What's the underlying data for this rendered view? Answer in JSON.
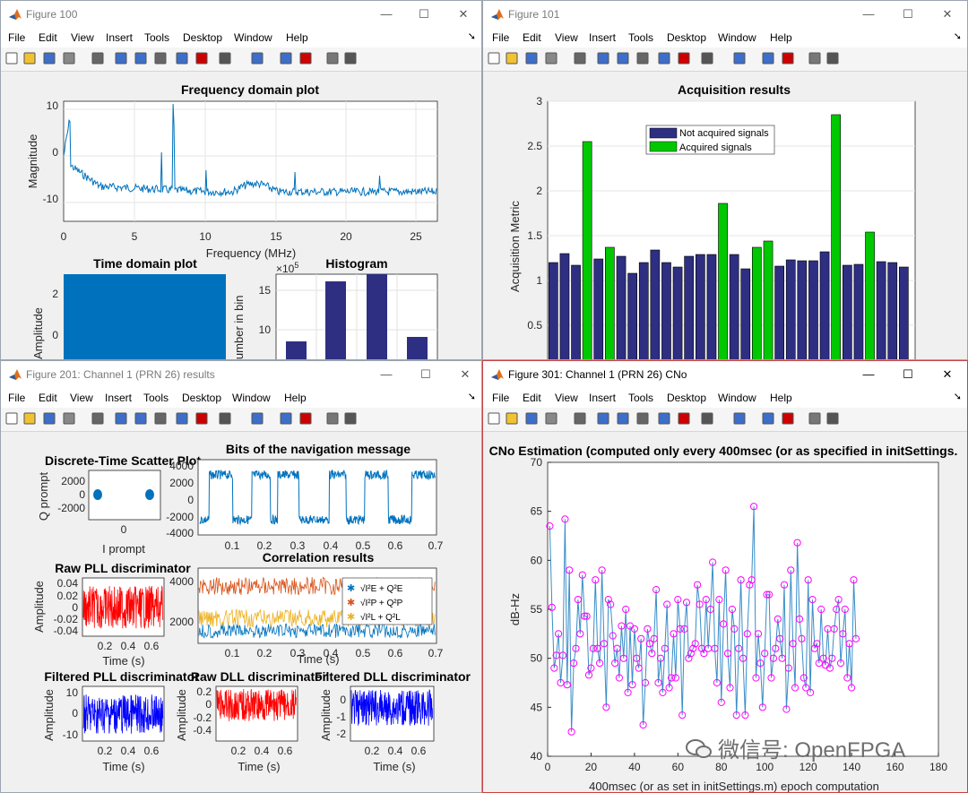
{
  "menus": [
    "File",
    "Edit",
    "View",
    "Insert",
    "Tools",
    "Desktop",
    "Window",
    "Help"
  ],
  "windows": {
    "fig100": {
      "title": "Figure 100",
      "freq": {
        "title": "Frequency domain plot",
        "xlabel": "Frequency (MHz)",
        "ylabel": "Magnitude",
        "xticks": [
          "0",
          "5",
          "10",
          "15",
          "20",
          "25"
        ],
        "yticks": [
          "10",
          "0",
          "-10"
        ]
      },
      "timedom": {
        "title": "Time domain plot",
        "ylabel": "Amplitude",
        "yticks": [
          "2",
          "0"
        ]
      },
      "hist": {
        "title": "Histogram",
        "ylabel": "Number in bin",
        "exponent": "×10",
        "exp_power": "5",
        "yticks": [
          "15",
          "10"
        ]
      }
    },
    "fig101": {
      "title": "Figure 101"
    },
    "fig201": {
      "title": "Figure 201: Channel 1 (PRN 26) results",
      "scatter": {
        "title": "Discrete-Time Scatter Plot",
        "xlabel": "I prompt",
        "ylabel": "Q prompt",
        "yticks": [
          "2000",
          "0",
          "-2000"
        ],
        "xticks": [
          "0"
        ]
      },
      "bits": {
        "title": "Bits of the navigation message",
        "xlabel": "",
        "yticks": [
          "4000",
          "2000",
          "0",
          "-2000",
          "-4000"
        ],
        "xticks": [
          "0.1",
          "0.2",
          "0.3",
          "0.4",
          "0.5",
          "0.6",
          "0.7"
        ]
      },
      "pll": {
        "title": "Raw PLL discriminator",
        "xlabel": "Time (s)",
        "ylabel": "Amplitude",
        "yticks": [
          "0.04",
          "0.02",
          "0",
          "-0.02",
          "-0.04"
        ],
        "xticks": [
          "0.2",
          "0.4",
          "0.6"
        ]
      },
      "corr": {
        "title": "Correlation results",
        "xlabel": "Time (s)",
        "yticks": [
          "4000",
          "2000"
        ],
        "xticks": [
          "0.1",
          "0.2",
          "0.3",
          "0.4",
          "0.5",
          "0.6",
          "0.7"
        ],
        "legend": [
          "√I²E + Q²E",
          "√I²P + Q²P",
          "√I²L + Q²L"
        ]
      },
      "fpll": {
        "title": "Filtered PLL discriminator",
        "xlabel": "Time (s)",
        "ylabel": "Amplitude",
        "yticks": [
          "10",
          "0",
          "-10"
        ],
        "xticks": [
          "0.2",
          "0.4",
          "0.6"
        ]
      },
      "dll": {
        "title": "Raw DLL discriminator",
        "xlabel": "Time (s)",
        "ylabel": "Amplitude",
        "yticks": [
          "0.2",
          "0",
          "-0.2",
          "-0.4"
        ],
        "xticks": [
          "0.2",
          "0.4",
          "0.6"
        ]
      },
      "fdll": {
        "title": "Filtered DLL discriminator",
        "xlabel": "Time (s)",
        "ylabel": "Amplitude",
        "yticks": [
          "0",
          "-1",
          "-2"
        ],
        "xticks": [
          "0.2",
          "0.4",
          "0.6"
        ]
      }
    },
    "fig301": {
      "title": "Figure 301: Channel 1 (PRN 26) CNo"
    }
  },
  "chart_data": [
    {
      "type": "bar",
      "title": "Acquisition results",
      "ylabel": "Acquisition Metric",
      "ylim": [
        0.5,
        3
      ],
      "yticks": [
        "0.5",
        "1",
        "1.5",
        "2",
        "2.5",
        "3"
      ],
      "series": [
        {
          "name": "Not acquired signals",
          "color": "#2e2f82"
        },
        {
          "name": "Acquired signals",
          "color": "#00c800"
        }
      ],
      "values": [
        1.2,
        1.3,
        1.17,
        2.55,
        1.24,
        1.37,
        1.27,
        1.08,
        1.2,
        1.34,
        1.2,
        1.15,
        1.27,
        1.29,
        1.29,
        1.86,
        1.29,
        1.13,
        1.37,
        1.44,
        1.16,
        1.23,
        1.22,
        1.22,
        1.32,
        2.85,
        1.17,
        1.18,
        1.54,
        1.21,
        1.2,
        1.15
      ],
      "acquired": [
        false,
        false,
        false,
        true,
        false,
        true,
        false,
        false,
        false,
        false,
        false,
        false,
        false,
        false,
        false,
        true,
        false,
        false,
        true,
        true,
        false,
        false,
        false,
        false,
        false,
        true,
        false,
        false,
        true,
        false,
        false,
        false
      ]
    },
    {
      "type": "line",
      "title": "CNo Estimation (computed only every 400msec (or as specified in initSettings.",
      "xlabel": "400msec (or as set in initSettings.m) epoch computation",
      "ylabel": "dB-Hz",
      "xlim": [
        0,
        180
      ],
      "ylim": [
        40,
        70
      ],
      "xticks": [
        "0",
        "20",
        "40",
        "60",
        "80",
        "100",
        "120",
        "140",
        "160",
        "180"
      ],
      "yticks": [
        "40",
        "45",
        "50",
        "55",
        "60",
        "65",
        "70"
      ],
      "line_color": "#3a8dc8",
      "marker_color": "#ff00ff",
      "values": [
        63.5,
        55.2,
        49,
        50.3,
        52.5,
        47.5,
        50.3,
        64.2,
        47.3,
        59,
        42.5,
        49.5,
        51,
        56,
        52.5,
        58.5,
        54.3,
        54.3,
        48.3,
        49,
        51,
        58,
        51,
        49.5,
        59,
        51.5,
        45,
        56,
        55.5,
        52.3,
        49.5,
        51,
        48,
        53.3,
        50,
        55,
        46.5,
        53.3,
        47.3,
        53,
        50,
        49,
        52,
        43.2,
        47.5,
        53,
        51.5,
        50.5,
        52,
        57,
        47.5,
        50,
        46.5,
        51,
        55.5,
        47,
        48,
        52.5,
        48,
        56,
        53,
        44.2,
        53,
        55.7,
        50,
        50.5,
        51,
        51.5,
        57.5,
        55.5,
        51,
        50.5,
        56,
        51,
        55,
        59.8,
        51,
        47.5,
        56,
        45.5,
        53.5,
        59,
        50.5,
        47,
        55,
        53,
        44.2,
        51,
        58,
        50,
        44.2,
        52.5,
        57.5,
        58,
        65.5,
        48,
        52.5,
        49.5,
        45,
        50.5,
        56.5,
        56.5,
        48,
        50,
        51,
        54,
        52,
        50,
        57.5,
        44.8,
        49,
        59,
        51.5,
        47,
        61.8,
        54,
        52,
        48,
        47,
        58,
        46.5,
        56,
        51,
        51.5,
        49.5,
        55,
        50,
        49.3,
        53,
        49,
        50,
        53,
        55,
        56,
        49.5,
        52.5,
        55,
        48,
        51.5,
        47,
        58,
        52
      ]
    }
  ]
}
